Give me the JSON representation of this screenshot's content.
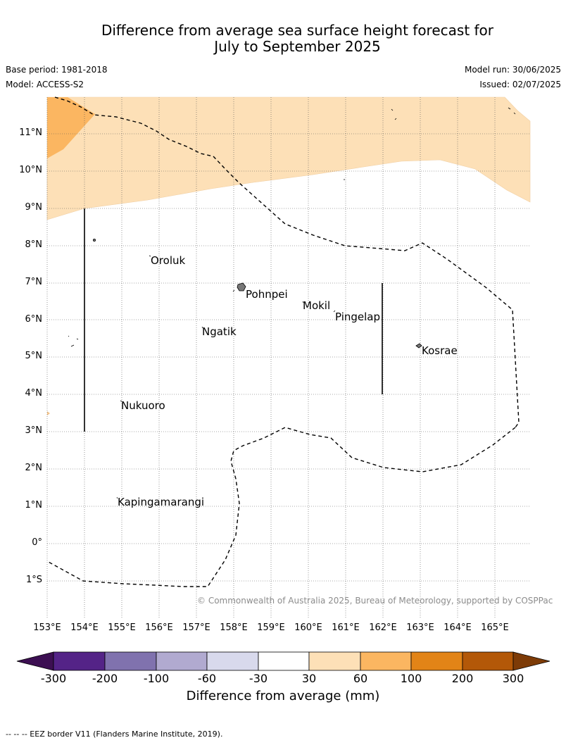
{
  "title_line1": "Difference from average sea surface height forecast for",
  "title_line2": "July to September 2025",
  "base_period": "Base period: 1981-2018",
  "model": "Model: ACCESS-S2",
  "model_run": "Model run: 30/06/2025",
  "issued": "Issued: 02/07/2025",
  "credit": "© Commonwealth of Australia 2025, Bureau of Meteorology, supported by COSPPac",
  "footnote": "-- -- -- EEZ border V11 (Flanders Marine Institute, 2019).",
  "map": {
    "lon_labels": [
      "153°E",
      "154°E",
      "155°E",
      "156°E",
      "157°E",
      "158°E",
      "159°E",
      "160°E",
      "161°E",
      "162°E",
      "163°E",
      "164°E",
      "165°E"
    ],
    "lat_labels": [
      "11°N",
      "10°N",
      "9°N",
      "8°N",
      "7°N",
      "6°N",
      "5°N",
      "4°N",
      "3°N",
      "2°N",
      "1°N",
      "0°",
      "1°S"
    ],
    "places": {
      "oroluk": "Oroluk",
      "pohnpei": "Pohnpei",
      "mokil": "Mokil",
      "pingelap": "Pingelap",
      "ngatik": "Ngatik",
      "kosrae": "Kosrae",
      "nukuoro": "Nukuoro",
      "kapingamarangi": "Kapingamarangi"
    },
    "shading": {
      "north_band": "30 to 60 mm",
      "northwest_corner": "60 to 100 mm"
    }
  },
  "colorbar": {
    "title": "Difference from average (mm)",
    "ticks": [
      "-300",
      "-200",
      "-100",
      "-60",
      "-30",
      "30",
      "60",
      "100",
      "200",
      "300"
    ],
    "colors": [
      "#3c0f52",
      "#542387",
      "#8072ae",
      "#b1aad0",
      "#d8d9ec",
      "#ffffff",
      "#fde0b7",
      "#fbb661",
      "#e28417",
      "#b35808",
      "#7d3b07"
    ]
  }
}
